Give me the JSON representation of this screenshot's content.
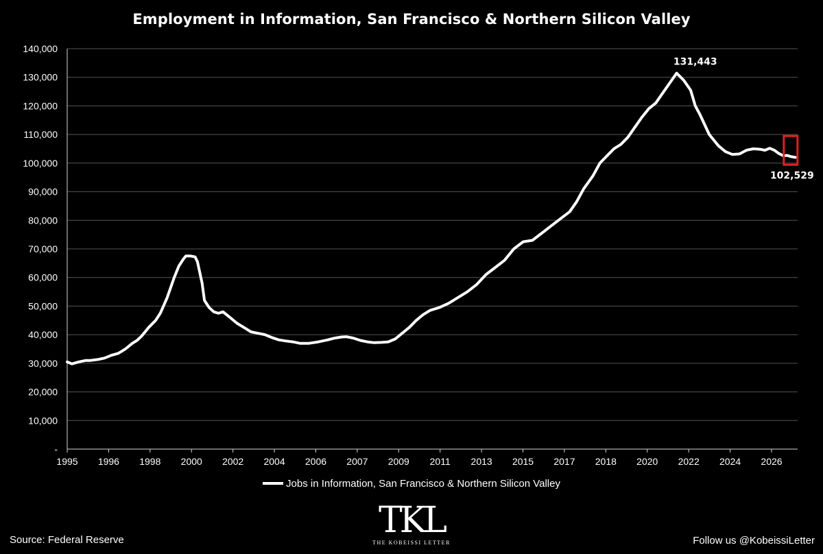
{
  "title": "Employment in Information, San Francisco & Northern Silicon Valley",
  "legend_label": "Jobs in Information, San Francisco & Northern Silicon Valley",
  "source": "Source: Federal Reserve",
  "follow": "Follow us @KobeissiLetter",
  "logo": {
    "mark": "TKL",
    "tagline": "THE KOBEISSI LETTER"
  },
  "colors": {
    "background": "#000000",
    "line": "#ffffff",
    "grid": "#555555",
    "highlight": "#e02020"
  },
  "chart_data": {
    "type": "line",
    "title": "Employment in Information, San Francisco & Northern Silicon Valley",
    "xlabel": "",
    "ylabel": "",
    "xlim": [
      1995,
      2026.4
    ],
    "ylim": [
      0,
      140000
    ],
    "grid": true,
    "legend": "bottom",
    "x_ticks": [
      "1995",
      "1996",
      "1998",
      "2000",
      "2002",
      "2004",
      "2006",
      "2007",
      "2009",
      "2011",
      "2013",
      "2015",
      "2017",
      "2018",
      "2020",
      "2022",
      "2024",
      "2026"
    ],
    "y_ticks": [
      "-",
      "10,000",
      "20,000",
      "30,000",
      "40,000",
      "50,000",
      "60,000",
      "70,000",
      "80,000",
      "90,000",
      "100,000",
      "110,000",
      "120,000",
      "130,000",
      "140,000"
    ],
    "series": [
      {
        "name": "Jobs in Information, San Francisco & Northern Silicon Valley",
        "x": [
          1995.0,
          1995.2,
          1995.5,
          1995.8,
          1996.0,
          1996.3,
          1996.6,
          1996.9,
          1997.2,
          1997.5,
          1997.8,
          1998.0,
          1998.2,
          1998.5,
          1998.8,
          1999.0,
          1999.3,
          1999.6,
          1999.8,
          2000.0,
          2000.1,
          2000.3,
          2000.5,
          2000.6,
          2000.8,
          2000.9,
          2001.1,
          2001.3,
          2001.5,
          2001.7,
          2002.0,
          2002.3,
          2002.6,
          2002.9,
          2003.2,
          2003.5,
          2003.8,
          2004.1,
          2004.4,
          2004.7,
          2005.0,
          2005.4,
          2005.8,
          2006.2,
          2006.5,
          2006.8,
          2007.0,
          2007.3,
          2007.6,
          2007.9,
          2008.2,
          2008.5,
          2008.8,
          2009.1,
          2009.4,
          2009.7,
          2010.0,
          2010.3,
          2010.6,
          2011.0,
          2011.4,
          2011.8,
          2012.2,
          2012.6,
          2013.0,
          2013.4,
          2013.8,
          2014.2,
          2014.6,
          2015.0,
          2015.4,
          2015.8,
          2016.2,
          2016.6,
          2016.9,
          2017.2,
          2017.6,
          2017.9,
          2018.2,
          2018.5,
          2018.8,
          2019.1,
          2019.4,
          2019.7,
          2020.0,
          2020.3,
          2020.6,
          2020.9,
          2021.2,
          2021.5,
          2021.8,
          2022.0,
          2022.2,
          2022.4,
          2022.6,
          2022.8,
          2023.0,
          2023.3,
          2023.6,
          2023.9,
          2024.2,
          2024.5,
          2024.8,
          2025.0,
          2025.2,
          2025.4,
          2025.6,
          2025.8,
          2025.95,
          2026.1,
          2026.3
        ],
        "y": [
          30500,
          29800,
          30500,
          31000,
          31000,
          31300,
          31800,
          32800,
          33500,
          35000,
          37000,
          38000,
          39500,
          42500,
          45000,
          47500,
          53000,
          60000,
          64000,
          66500,
          67500,
          67500,
          67200,
          65500,
          58000,
          52000,
          49500,
          48000,
          47500,
          48000,
          46000,
          44000,
          42500,
          41000,
          40500,
          40000,
          39000,
          38200,
          37800,
          37500,
          37000,
          37000,
          37500,
          38200,
          38800,
          39200,
          39300,
          38800,
          38000,
          37500,
          37200,
          37300,
          37500,
          38500,
          40500,
          42500,
          45000,
          47000,
          48500,
          49500,
          51000,
          53000,
          55000,
          57500,
          61000,
          63500,
          66000,
          70000,
          72500,
          73000,
          75500,
          78000,
          80500,
          83000,
          86500,
          91000,
          95500,
          100000,
          102500,
          105000,
          106500,
          109000,
          112500,
          116000,
          119000,
          121000,
          124500,
          128000,
          131443,
          129000,
          125500,
          120000,
          117000,
          113500,
          110000,
          108000,
          106000,
          104000,
          103000,
          103200,
          104500,
          105000,
          104800,
          104500,
          105200,
          104500,
          103300,
          102529,
          102700,
          102300,
          102000
        ]
      }
    ],
    "annotations": [
      {
        "text": "131,443",
        "x": 2022.0,
        "y": 131443
      },
      {
        "text": "102,529",
        "x": 2026.1,
        "y": 102529
      }
    ]
  }
}
